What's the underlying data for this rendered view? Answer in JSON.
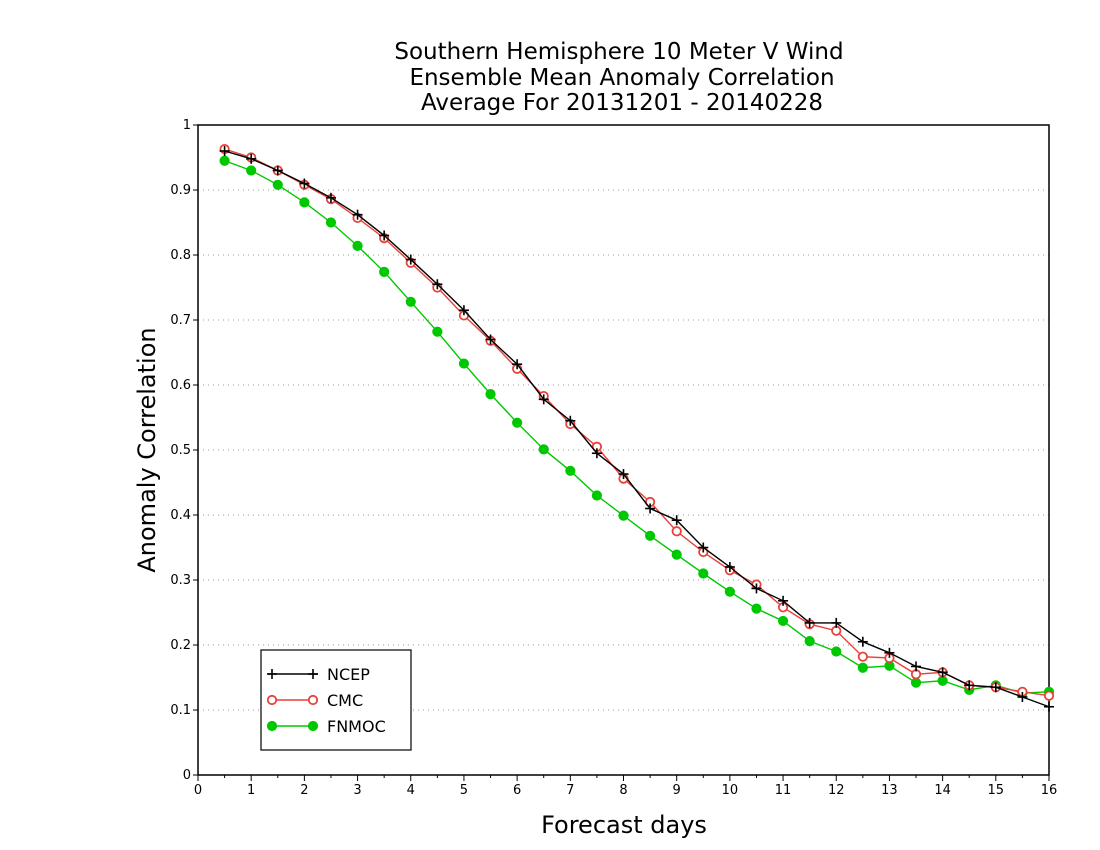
{
  "chart_data": {
    "type": "line",
    "title": [
      "Southern Hemisphere 10 Meter V Wind",
      "Ensemble Mean Anomaly Correlation",
      "Average For 20131201 - 20140228"
    ],
    "xlabel": "Forecast days",
    "ylabel": "Anomaly Correlation",
    "xlim": [
      0,
      16
    ],
    "ylim": [
      0,
      1
    ],
    "xticks": [
      "0",
      "1",
      "2",
      "3",
      "4",
      "5",
      "6",
      "7",
      "8",
      "9",
      "10",
      "11",
      "12",
      "13",
      "14",
      "15",
      "16"
    ],
    "yticks": [
      "0",
      "0.1",
      "0.2",
      "0.3",
      "0.4",
      "0.5",
      "0.6",
      "0.7",
      "0.8",
      "0.9",
      "1"
    ],
    "grid": true,
    "legend_position": "bottom-left",
    "x": [
      0.5,
      1,
      1.5,
      2,
      2.5,
      3,
      3.5,
      4,
      4.5,
      5,
      5.5,
      6,
      6.5,
      7,
      7.5,
      8,
      8.5,
      9,
      9.5,
      10,
      10.5,
      11,
      11.5,
      12,
      12.5,
      13,
      13.5,
      14,
      14.5,
      15,
      15.5,
      16
    ],
    "series": [
      {
        "name": "NCEP",
        "color": "#000000",
        "marker": "plus",
        "values": [
          0.96,
          0.948,
          0.93,
          0.91,
          0.888,
          0.862,
          0.83,
          0.793,
          0.755,
          0.715,
          0.67,
          0.632,
          0.578,
          0.545,
          0.495,
          0.463,
          0.41,
          0.392,
          0.35,
          0.32,
          0.287,
          0.268,
          0.234,
          0.234,
          0.205,
          0.188,
          0.167,
          0.158,
          0.138,
          0.135,
          0.12,
          0.105
        ]
      },
      {
        "name": "CMC",
        "color": "#e8413a",
        "marker": "open-circle",
        "values": [
          0.963,
          0.95,
          0.93,
          0.908,
          0.886,
          0.857,
          0.826,
          0.788,
          0.75,
          0.707,
          0.668,
          0.625,
          0.583,
          0.54,
          0.505,
          0.456,
          0.42,
          0.375,
          0.343,
          0.315,
          0.293,
          0.258,
          0.232,
          0.222,
          0.182,
          0.18,
          0.155,
          0.158,
          0.138,
          0.135,
          0.128,
          0.122
        ]
      },
      {
        "name": "FNMOC",
        "color": "#00c800",
        "marker": "filled-circle",
        "values": [
          0.945,
          0.93,
          0.908,
          0.881,
          0.85,
          0.814,
          0.774,
          0.728,
          0.682,
          0.633,
          0.586,
          0.542,
          0.501,
          0.468,
          0.43,
          0.399,
          0.368,
          0.339,
          0.31,
          0.282,
          0.256,
          0.237,
          0.206,
          0.19,
          0.165,
          0.168,
          0.142,
          0.145,
          0.131,
          0.138,
          0.126,
          0.128
        ]
      }
    ]
  }
}
